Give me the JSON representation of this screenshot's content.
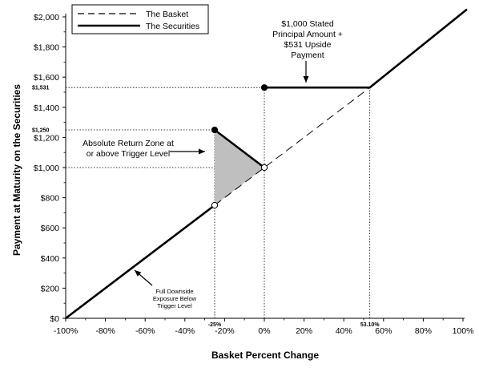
{
  "chart_data": {
    "type": "line",
    "xlabel": "Basket Percent Change",
    "ylabel": "Payment at Maturity on the Securities",
    "xlim": [
      -100,
      100
    ],
    "ylim": [
      0,
      2000
    ],
    "x_ticks": [
      {
        "value": -100,
        "label": "-100%"
      },
      {
        "value": -80,
        "label": "-80%"
      },
      {
        "value": -60,
        "label": "-60%"
      },
      {
        "value": -40,
        "label": "-40%"
      },
      {
        "value": -20,
        "label": "-20%"
      },
      {
        "value": 0,
        "label": "0%"
      },
      {
        "value": 20,
        "label": "20%"
      },
      {
        "value": 40,
        "label": "40%"
      },
      {
        "value": 60,
        "label": "60%"
      },
      {
        "value": 80,
        "label": "80%"
      },
      {
        "value": 100,
        "label": "100%"
      }
    ],
    "y_ticks": [
      {
        "value": 0,
        "label": "$0"
      },
      {
        "value": 200,
        "label": "$200"
      },
      {
        "value": 400,
        "label": "$400"
      },
      {
        "value": 600,
        "label": "$600"
      },
      {
        "value": 800,
        "label": "$800"
      },
      {
        "value": 1000,
        "label": "$1,000"
      },
      {
        "value": 1200,
        "label": "$1,200"
      },
      {
        "value": 1400,
        "label": "$1,400"
      },
      {
        "value": 1600,
        "label": "$1,600"
      },
      {
        "value": 1800,
        "label": "$1,800"
      },
      {
        "value": 2000,
        "label": "$2,000"
      }
    ],
    "special_y_labels": [
      {
        "value": 1531,
        "label": "$1,531"
      },
      {
        "value": 1250,
        "label": "$1,250"
      }
    ],
    "special_x_labels": [
      {
        "value": -25,
        "label": "-25%"
      },
      {
        "value": 53.1,
        "label": "53.10%"
      }
    ],
    "series": [
      {
        "name": "The Basket",
        "style": "dashed",
        "color": "#000000",
        "points": [
          [
            -25,
            750
          ],
          [
            53.1,
            1531
          ]
        ]
      },
      {
        "name": "The Securities",
        "style": "solid",
        "color": "#000000",
        "segments": [
          [
            [
              -100,
              0
            ],
            [
              -25,
              750
            ]
          ],
          [
            [
              -25,
              1250
            ],
            [
              0,
              1000
            ]
          ],
          [
            [
              0,
              1531
            ],
            [
              53.1,
              1531
            ],
            [
              102,
              2050
            ]
          ]
        ]
      }
    ],
    "markers": [
      {
        "x": -25,
        "y": 1250,
        "filled": true
      },
      {
        "x": 0,
        "y": 1531,
        "filled": true
      },
      {
        "x": -25,
        "y": 750,
        "filled": false
      },
      {
        "x": 0,
        "y": 1000,
        "filled": false
      }
    ],
    "shaded_region": {
      "points": [
        [
          -25,
          1250
        ],
        [
          0,
          1000
        ],
        [
          -25,
          750
        ]
      ],
      "color": "#bfbfbf"
    },
    "reference_lines": [
      {
        "axis": "y",
        "value": 1531,
        "from_x": -100,
        "to_x": 0
      },
      {
        "axis": "y",
        "value": 1250,
        "from_x": -100,
        "to_x": -25
      },
      {
        "axis": "y",
        "value": 1000,
        "from_x": -100,
        "to_x": 0
      },
      {
        "axis": "x",
        "value": -25,
        "from_y": 0,
        "to_y": 1250
      },
      {
        "axis": "x",
        "value": 0,
        "from_y": 0,
        "to_y": 1531
      },
      {
        "axis": "x",
        "value": 53.1,
        "from_y": 0,
        "to_y": 1531
      }
    ],
    "annotations": [
      {
        "lines": [
          "$1,000 Stated",
          "Principal Amount +",
          "$531 Upside",
          "Payment"
        ],
        "size": "normal"
      },
      {
        "lines": [
          "Absolute Return Zone at",
          "or above Trigger Level"
        ],
        "size": "normal"
      },
      {
        "lines": [
          "Full Downside",
          "Exposure Below",
          "Trigger Level"
        ],
        "size": "small"
      }
    ],
    "legend": {
      "placement": "top-left"
    },
    "grid": false
  }
}
